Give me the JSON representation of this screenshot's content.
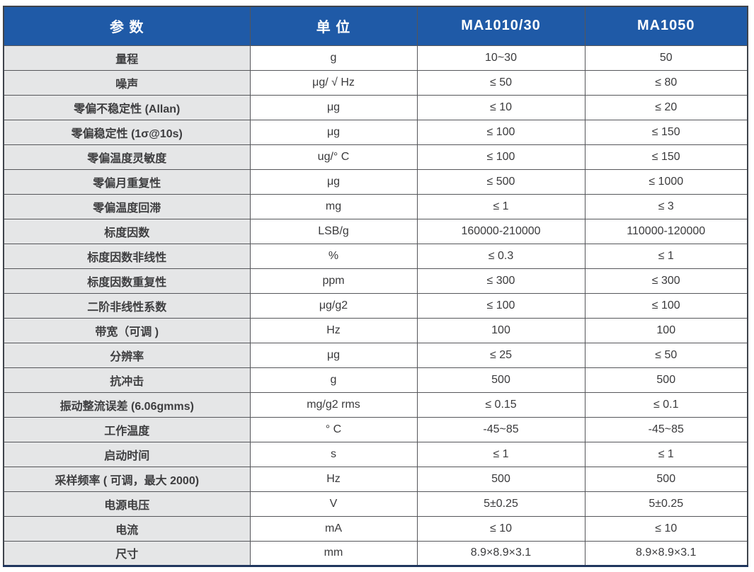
{
  "table": {
    "headers": [
      "参 数",
      "单 位",
      "MA1010/30",
      "MA1050"
    ],
    "rows": [
      {
        "param": "量程",
        "unit": "g",
        "ma1010_30": "10~30",
        "ma1050": "50"
      },
      {
        "param": "噪声",
        "unit": "μg/ √ Hz",
        "ma1010_30": "≤ 50",
        "ma1050": "≤ 80"
      },
      {
        "param": "零偏不稳定性 (Allan)",
        "unit": "μg",
        "ma1010_30": "≤ 10",
        "ma1050": "≤ 20"
      },
      {
        "param": "零偏稳定性 (1σ@10s)",
        "unit": "μg",
        "ma1010_30": "≤ 100",
        "ma1050": "≤ 150"
      },
      {
        "param": "零偏温度灵敏度",
        "unit": "ug/° C",
        "ma1010_30": "≤ 100",
        "ma1050": "≤ 150"
      },
      {
        "param": "零偏月重复性",
        "unit": "μg",
        "ma1010_30": "≤ 500",
        "ma1050": "≤ 1000"
      },
      {
        "param": "零偏温度回滞",
        "unit": "mg",
        "ma1010_30": "≤ 1",
        "ma1050": "≤ 3"
      },
      {
        "param": "标度因数",
        "unit": "LSB/g",
        "ma1010_30": "160000-210000",
        "ma1050": "110000-120000"
      },
      {
        "param": "标度因数非线性",
        "unit": "%",
        "ma1010_30": "≤ 0.3",
        "ma1050": "≤ 1"
      },
      {
        "param": "标度因数重复性",
        "unit": "ppm",
        "ma1010_30": "≤ 300",
        "ma1050": "≤ 300"
      },
      {
        "param": "二阶非线性系数",
        "unit": "μg/g2",
        "ma1010_30": "≤ 100",
        "ma1050": "≤ 100"
      },
      {
        "param": "带宽（可调 )",
        "unit": "Hz",
        "ma1010_30": "100",
        "ma1050": "100"
      },
      {
        "param": "分辨率",
        "unit": "μg",
        "ma1010_30": "≤ 25",
        "ma1050": "≤ 50"
      },
      {
        "param": "抗冲击",
        "unit": "g",
        "ma1010_30": "500",
        "ma1050": "500"
      },
      {
        "param": "振动整流误差 (6.06gmms)",
        "unit": "mg/g2 rms",
        "ma1010_30": "≤ 0.15",
        "ma1050": "≤ 0.1"
      },
      {
        "param": "工作温度",
        "unit": "° C",
        "ma1010_30": "-45~85",
        "ma1050": "-45~85"
      },
      {
        "param": "启动时间",
        "unit": "s",
        "ma1010_30": "≤ 1",
        "ma1050": "≤ 1"
      },
      {
        "param": "采样频率 ( 可调，最大 2000)",
        "unit": "Hz",
        "ma1010_30": "500",
        "ma1050": "500"
      },
      {
        "param": "电源电压",
        "unit": "V",
        "ma1010_30": "5±0.25",
        "ma1050": "5±0.25"
      },
      {
        "param": "电流",
        "unit": "mA",
        "ma1010_30": "≤ 10",
        "ma1050": "≤ 10"
      },
      {
        "param": "尺寸",
        "unit": "mm",
        "ma1010_30": "8.9×8.9×3.1",
        "ma1050": "8.9×8.9×3.1"
      }
    ],
    "colors": {
      "header_bg": "#1F5AA7",
      "header_text": "#FFFFFF",
      "param_bg": "#E5E6E7",
      "value_bg": "#FFFFFF",
      "grid_line": "#55565A",
      "outer_border": "#3F444C",
      "bottom_border": "#20365E",
      "label_text": "#3E3E40",
      "value_text": "#3A3A3C"
    }
  }
}
